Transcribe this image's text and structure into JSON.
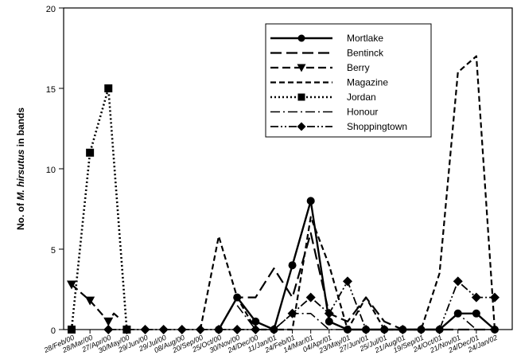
{
  "chart_data": {
    "type": "line",
    "title": "",
    "xlabel": "",
    "ylabel_prefix": "No. of ",
    "ylabel_italic": "M. hirsutus",
    "ylabel_suffix": " in bands",
    "ylim": [
      0,
      20
    ],
    "yticks": [
      0,
      5,
      10,
      15,
      20
    ],
    "grid": false,
    "legend_position": "top-right",
    "x": [
      "28/Feb/00",
      "28/Mar/00",
      "27/Apr/00",
      "30/May/00",
      "29/Jun/00",
      "29/Jul/00",
      "08/Aug/00",
      "20/Sep/00",
      "25/Oct/00",
      "30/Nov/00",
      "24/Dec/00",
      "11/Jan/01",
      "24/Feb/01",
      "14/Mar/01",
      "04/Apr/01",
      "23/May/01",
      "27/Jun/01",
      "25/Jul/01",
      "21/Aug/01",
      "19/Sep/01",
      "24/Oct/01",
      "21/Nov/01",
      "24/Dec/01",
      "24/Jan/02"
    ],
    "series": [
      {
        "name": "Mortlake",
        "dash": "",
        "marker": "circle",
        "width": 2.4,
        "points": [
          [
            8,
            0
          ],
          [
            9,
            2
          ],
          [
            10,
            0.5
          ],
          [
            11,
            0
          ],
          [
            12,
            4
          ],
          [
            13,
            8
          ],
          [
            14,
            0.5
          ],
          [
            15,
            0
          ],
          [
            16,
            0
          ],
          [
            17,
            0
          ],
          [
            18,
            0
          ],
          [
            19,
            0
          ],
          [
            20,
            0
          ],
          [
            21,
            1
          ],
          [
            22,
            1
          ],
          [
            23,
            0
          ]
        ]
      },
      {
        "name": "Bentinck",
        "dash": "14,6",
        "marker": "none",
        "width": 2.2,
        "points": [
          [
            8,
            0
          ],
          [
            9,
            2
          ],
          [
            10,
            2
          ],
          [
            11,
            3.8
          ],
          [
            12,
            2
          ],
          [
            13,
            6
          ],
          [
            14,
            1
          ],
          [
            15,
            0.5
          ],
          [
            16,
            2
          ],
          [
            17,
            0.5
          ],
          [
            18,
            0
          ],
          [
            19,
            0
          ],
          [
            20,
            0
          ],
          [
            21,
            0
          ],
          [
            22,
            0
          ],
          [
            23,
            0
          ]
        ]
      },
      {
        "name": "Berry",
        "dash": "10,5",
        "marker": "triangle",
        "width": 2.2,
        "points": [
          [
            0,
            2.8
          ],
          [
            1,
            1.8
          ],
          [
            2,
            0.5
          ],
          [
            2.3,
            1
          ],
          [
            2.6,
            0.7
          ]
        ]
      },
      {
        "name": "Magazine",
        "dash": "7,4",
        "marker": "none",
        "width": 2.2,
        "points": [
          [
            7,
            0
          ],
          [
            8,
            5.8
          ],
          [
            9,
            2
          ],
          [
            10,
            0
          ],
          [
            11,
            0
          ],
          [
            12,
            0
          ],
          [
            13,
            7
          ],
          [
            14,
            4
          ],
          [
            15,
            0
          ],
          [
            16,
            2
          ],
          [
            17,
            0
          ],
          [
            18,
            0
          ],
          [
            19,
            0
          ],
          [
            20,
            3.5
          ],
          [
            21,
            16
          ],
          [
            22,
            17
          ],
          [
            23,
            0
          ]
        ]
      },
      {
        "name": "Jordan",
        "dash": "2,3",
        "marker": "square",
        "width": 2.6,
        "points": [
          [
            0,
            0
          ],
          [
            1,
            11
          ],
          [
            2,
            15
          ],
          [
            3,
            0
          ]
        ]
      },
      {
        "name": "Honour",
        "dash": "12,4,2,4",
        "marker": "none",
        "width": 1.6,
        "points": [
          [
            9,
            1.5
          ],
          [
            10,
            0
          ],
          [
            11,
            0
          ],
          [
            12,
            1
          ],
          [
            13,
            1
          ],
          [
            14,
            0
          ],
          [
            15,
            0
          ],
          [
            16,
            0
          ],
          [
            17,
            0
          ],
          [
            18,
            0
          ],
          [
            19,
            0
          ],
          [
            20,
            0
          ],
          [
            21,
            1
          ],
          [
            22,
            0
          ],
          [
            23,
            0
          ]
        ]
      },
      {
        "name": "Shoppingtown",
        "dash": "10,3,2,3,2,3",
        "marker": "diamond",
        "width": 1.8,
        "points": [
          [
            2,
            0
          ],
          [
            3,
            0
          ],
          [
            4,
            0
          ],
          [
            5,
            0
          ],
          [
            6,
            0
          ],
          [
            7,
            0
          ],
          [
            8,
            0
          ],
          [
            9,
            0
          ],
          [
            10,
            0
          ],
          [
            11,
            0
          ],
          [
            12,
            1
          ],
          [
            13,
            2
          ],
          [
            14,
            1
          ],
          [
            15,
            3
          ],
          [
            16,
            0
          ],
          [
            17,
            0
          ],
          [
            18,
            0
          ],
          [
            19,
            0
          ],
          [
            20,
            0
          ],
          [
            21,
            3
          ],
          [
            22,
            2
          ],
          [
            23,
            2
          ]
        ]
      }
    ]
  }
}
